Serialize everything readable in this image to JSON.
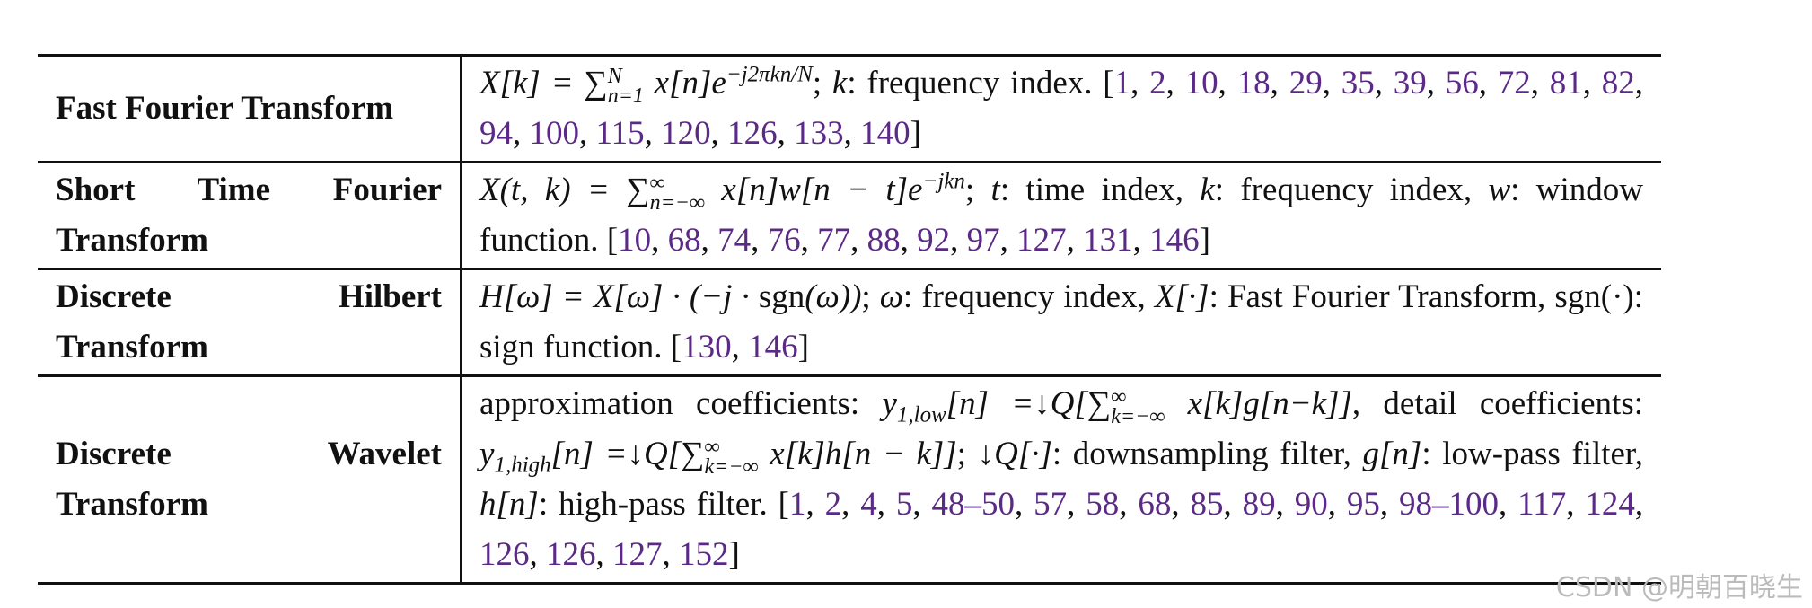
{
  "table": {
    "rows": [
      {
        "name": "Fast Fourier Transform",
        "description": [
          {
            "m": "X[k] = ∑"
          },
          {
            "ss": [
              "n=1",
              "N"
            ]
          },
          {
            "m": " x[n]e"
          },
          {
            "sup": "−j2πkn/N"
          },
          {
            "t": "; "
          },
          {
            "m": "k"
          },
          {
            "t": ": frequency index. "
          },
          {
            "open": "[",
            "cites": [
              "1",
              "2",
              "10",
              "18",
              "29",
              "35",
              "39",
              "56",
              "72",
              "81",
              "82",
              "94",
              "100",
              "115",
              "120",
              "126",
              "133",
              "140"
            ],
            "sep": ", ",
            "close": "]"
          }
        ]
      },
      {
        "name": "Short Time Fourier Transform",
        "description": [
          {
            "m": "X(t, k) = ∑"
          },
          {
            "ss": [
              "n=−∞",
              "∞"
            ]
          },
          {
            "m": " x[n]w[n − t]e"
          },
          {
            "sup": "−jkn"
          },
          {
            "t": "; "
          },
          {
            "m": "t"
          },
          {
            "t": ": time index, "
          },
          {
            "m": "k"
          },
          {
            "t": ": frequency index, "
          },
          {
            "m": "w"
          },
          {
            "t": ": window function. "
          },
          {
            "open": "[",
            "cites": [
              "10",
              "68",
              "74",
              "76",
              "77",
              "88",
              "92",
              "97",
              "127",
              "131",
              "146"
            ],
            "sep": ", ",
            "close": "]"
          }
        ]
      },
      {
        "name": "Discrete Hilbert Transform",
        "description": [
          {
            "m": "H[ω] = X[ω] · (−j · "
          },
          {
            "t": "sgn"
          },
          {
            "m": "(ω))"
          },
          {
            "t": "; "
          },
          {
            "m": "ω"
          },
          {
            "t": ": frequency index, "
          },
          {
            "m": "X[·]"
          },
          {
            "t": ": Fast Fourier Transform, sgn(·): sign function. "
          },
          {
            "open": "[",
            "cites": [
              "130",
              "146"
            ],
            "sep": ", ",
            "close": "]"
          }
        ]
      },
      {
        "name": "Discrete Wavelet Transform",
        "description": [
          {
            "t": "approximation coefficients: "
          },
          {
            "m": "y"
          },
          {
            "sub": "1,low"
          },
          {
            "m": "[n] =↓Q[∑"
          },
          {
            "ss": [
              "k=−∞",
              "∞"
            ]
          },
          {
            "m": " x[k]g[n−k]]"
          },
          {
            "t": ", detail coefficients: "
          },
          {
            "m": "y"
          },
          {
            "sub": "1,high"
          },
          {
            "m": "[n] =↓Q[∑"
          },
          {
            "ss": [
              "k=−∞",
              "∞"
            ]
          },
          {
            "m": " x[k]h[n − k]]"
          },
          {
            "t": "; "
          },
          {
            "m": "↓Q[·]"
          },
          {
            "t": ": downsampling filter, "
          },
          {
            "m": "g[n]"
          },
          {
            "t": ": low-pass filter, "
          },
          {
            "m": "h[n]"
          },
          {
            "t": ": high-pass filter. "
          },
          {
            "open": "[",
            "cites": [
              "1",
              "2",
              "4",
              "5",
              "48–50",
              "57",
              "58",
              "68",
              "85",
              "89",
              "90",
              "95",
              "98–100",
              "117",
              "124",
              "126",
              "126",
              "127",
              "152"
            ],
            "sep": ", ",
            "close": "]"
          }
        ]
      }
    ]
  },
  "watermark": "CSDN @明朝百晓生"
}
